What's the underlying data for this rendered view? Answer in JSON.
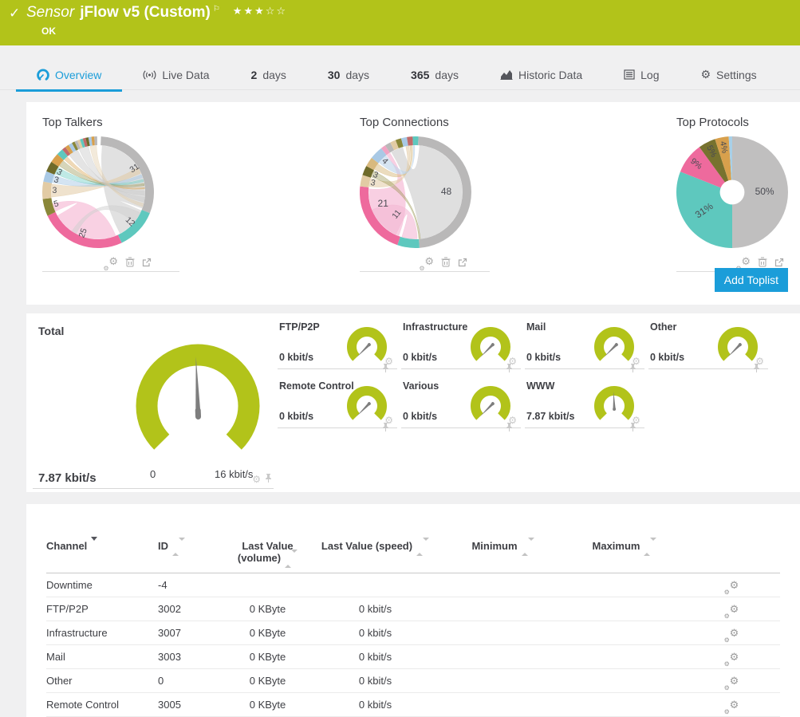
{
  "header": {
    "check": "✓",
    "kind": "Sensor",
    "name": "jFlow v5 (Custom)",
    "flag": "⚐",
    "stars": "★★★☆☆",
    "status": "OK"
  },
  "tabs": [
    {
      "id": "overview",
      "icon": "gauge-icon",
      "label": "Overview",
      "active": true
    },
    {
      "id": "live-data",
      "icon": "broadcast-icon",
      "label": "Live Data"
    },
    {
      "id": "2-days",
      "num": "2",
      "label": "days"
    },
    {
      "id": "30-days",
      "num": "30",
      "label": "days"
    },
    {
      "id": "365-days",
      "num": "365",
      "label": "days"
    },
    {
      "id": "historic-data",
      "icon": "chart-icon",
      "label": "Historic Data"
    },
    {
      "id": "log",
      "icon": "log-icon",
      "label": "Log"
    },
    {
      "id": "settings",
      "icon": "gear-icon",
      "label": "Settings"
    }
  ],
  "toplists": {
    "add_button": "Add Toplist",
    "items": [
      {
        "title": "Top Talkers"
      },
      {
        "title": "Top Connections"
      },
      {
        "title": "Top Protocols"
      }
    ]
  },
  "chart_data": [
    {
      "type": "chord",
      "title": "Top Talkers",
      "unit": "percent",
      "values": [
        31,
        25,
        12,
        5,
        3,
        3,
        3
      ],
      "segments": [
        {
          "a": [
            3,
            112
          ],
          "c": "#b9b8b8"
        },
        {
          "a": [
            112,
            155
          ],
          "c": "#5ec8be"
        },
        {
          "a": [
            155,
            245
          ],
          "c": "#ee6a9d"
        },
        {
          "a": [
            245,
            263
          ],
          "c": "#8a8738"
        },
        {
          "a": [
            263,
            281
          ],
          "c": "#e2cba4"
        },
        {
          "a": [
            281,
            292
          ],
          "c": "#a9c9e5"
        },
        {
          "a": [
            292,
            303
          ],
          "c": "#6f6b2a"
        },
        {
          "a": [
            303,
            313
          ],
          "c": "#d8a04c"
        },
        {
          "a": [
            313,
            320
          ],
          "c": "#5ec8be"
        },
        {
          "a": [
            320,
            324
          ],
          "c": "#c16a6a"
        },
        {
          "a": [
            324,
            328
          ],
          "c": "#d8a04c"
        },
        {
          "a": [
            328,
            332
          ],
          "c": "#a9c9e5"
        },
        {
          "a": [
            332,
            335
          ],
          "c": "#8a8738"
        },
        {
          "a": [
            335,
            338
          ],
          "c": "#b9b8b8"
        },
        {
          "a": [
            338,
            341
          ],
          "c": "#e2cba4"
        },
        {
          "a": [
            341,
            344
          ],
          "c": "#5ec8be"
        },
        {
          "a": [
            344,
            347
          ],
          "c": "#c16a6a"
        },
        {
          "a": [
            347,
            350
          ],
          "c": "#6f6b2a"
        },
        {
          "a": [
            350,
            353
          ],
          "c": "#a9c9e5"
        },
        {
          "a": [
            353,
            356
          ],
          "c": "#d8a04c"
        },
        {
          "a": [
            356,
            359
          ],
          "c": "#b9b8b8"
        }
      ],
      "ribbons": [
        {
          "s": [
            5,
            110
          ],
          "t": [
            113,
            152
          ],
          "c": "#dcdcdc",
          "o": 0.85
        },
        {
          "s": [
            158,
            240
          ],
          "t": [
            246,
            256
          ],
          "c": "#f8cce0",
          "o": 0.9
        },
        {
          "s": [
            264,
            280
          ],
          "t": [
            58,
            66
          ],
          "c": "#e2cba4",
          "o": 0.55
        },
        {
          "s": [
            282,
            291
          ],
          "t": [
            68,
            72
          ],
          "c": "#a9c9e5",
          "o": 0.5
        },
        {
          "s": [
            293,
            302
          ],
          "t": [
            74,
            77
          ],
          "c": "#5ec8be",
          "o": 0.4
        },
        {
          "s": [
            304,
            312
          ],
          "t": [
            79,
            82
          ],
          "c": "#8a8738",
          "o": 0.35
        },
        {
          "s": [
            314,
            319
          ],
          "t": [
            84,
            86
          ],
          "c": "#d8a04c",
          "o": 0.4
        },
        {
          "s": [
            322,
            334
          ],
          "t": [
            88,
            94
          ],
          "c": "#c9c9c9",
          "o": 0.5
        },
        {
          "s": [
            336,
            348
          ],
          "t": [
            96,
            102
          ],
          "c": "#c9c9c9",
          "o": 0.45
        },
        {
          "s": [
            350,
            358
          ],
          "t": [
            104,
            108
          ],
          "c": "#e2cba4",
          "o": 0.4
        },
        {
          "s": [
            116,
            130
          ],
          "t": [
            208,
            214
          ],
          "c": "#cfcfcf",
          "o": 0.5
        }
      ],
      "labels": [
        {
          "t": "31",
          "ang": 57,
          "rf": 0.78,
          "rot": -33
        },
        {
          "t": "12",
          "ang": 133,
          "rf": 0.78,
          "rot": 43
        },
        {
          "t": "25",
          "ang": 200,
          "rf": 0.78,
          "rot": -70
        },
        {
          "t": "5",
          "ang": 254,
          "rf": 0.78,
          "rot": -16
        },
        {
          "t": "3",
          "ang": 272,
          "rf": 0.78,
          "rot": 2
        },
        {
          "t": "3",
          "ang": 286,
          "rf": 0.78,
          "rot": 16
        },
        {
          "t": "3",
          "ang": 297,
          "rf": 0.78,
          "rot": 27
        }
      ]
    },
    {
      "type": "chord",
      "title": "Top Connections",
      "unit": "percent",
      "values": [
        48,
        21,
        11,
        4,
        3,
        3
      ],
      "segments": [
        {
          "a": [
            0,
            3
          ],
          "c": "#5ec8be"
        },
        {
          "a": [
            3,
            176
          ],
          "c": "#b9b8b8"
        },
        {
          "a": [
            176,
            199
          ],
          "c": "#5ec8be"
        },
        {
          "a": [
            199,
            276
          ],
          "c": "#ee6a9d"
        },
        {
          "a": [
            276,
            288
          ],
          "c": "#e2cba4"
        },
        {
          "a": [
            288,
            298
          ],
          "c": "#6f6b2a"
        },
        {
          "a": [
            298,
            308
          ],
          "c": "#d8b97e"
        },
        {
          "a": [
            308,
            322
          ],
          "c": "#a9c9e5"
        },
        {
          "a": [
            322,
            327
          ],
          "c": "#f0a3c3"
        },
        {
          "a": [
            327,
            333
          ],
          "c": "#b9b8b8"
        },
        {
          "a": [
            333,
            339
          ],
          "c": "#e2cba4"
        },
        {
          "a": [
            339,
            345
          ],
          "c": "#8a8738"
        },
        {
          "a": [
            345,
            351
          ],
          "c": "#a9c9e5"
        },
        {
          "a": [
            351,
            357
          ],
          "c": "#c16a6a"
        },
        {
          "a": [
            357,
            360
          ],
          "c": "#5ec8be"
        }
      ],
      "ribbons": [
        {
          "s": [
            5,
            174
          ],
          "t": [
            329,
            344
          ],
          "c": "#dcdcdc",
          "o": 0.9
        },
        {
          "s": [
            201,
            274
          ],
          "t": [
            322,
            327
          ],
          "c": "#f8cce0",
          "o": 0.95
        },
        {
          "s": [
            205,
            248
          ],
          "t": [
            178,
            197
          ],
          "c": "#f3b7d3",
          "o": 0.6
        },
        {
          "s": [
            277,
            287
          ],
          "t": [
            348,
            352
          ],
          "c": "#e2cba4",
          "o": 0.55
        },
        {
          "s": [
            289,
            297
          ],
          "t": [
            174,
            176
          ],
          "c": "#8a8738",
          "o": 0.35
        },
        {
          "s": [
            299,
            307
          ],
          "t": [
            353,
            356
          ],
          "c": "#d8b97e",
          "o": 0.5
        },
        {
          "s": [
            309,
            321
          ],
          "t": [
            357,
            359
          ],
          "c": "#bcd4ea",
          "o": 0.6
        }
      ],
      "labels": [
        {
          "t": "48",
          "ang": 90,
          "rf": 0.55,
          "rot": 0,
          "fs": 12
        },
        {
          "t": "21",
          "ang": 250,
          "rf": 0.62,
          "rot": 0,
          "fs": 12
        },
        {
          "t": "11",
          "ang": 220,
          "rf": 0.52,
          "rot": -52
        },
        {
          "t": "3",
          "ang": 282,
          "rf": 0.78,
          "rot": 12
        },
        {
          "t": "3",
          "ang": 293,
          "rf": 0.78,
          "rot": 23
        },
        {
          "t": "4",
          "ang": 315,
          "rf": 0.78,
          "rot": 45
        }
      ]
    },
    {
      "type": "donut",
      "title": "Top Protocols",
      "unit": "percent",
      "hole": 0.22,
      "slices": [
        {
          "name": "slice-1",
          "v": 50,
          "c": "#c0bfbf"
        },
        {
          "name": "slice-2",
          "v": 31,
          "c": "#5ec8be"
        },
        {
          "name": "slice-3",
          "v": 9,
          "c": "#ee6a9d"
        },
        {
          "name": "slice-4",
          "v": 5,
          "c": "#77722f"
        },
        {
          "name": "slice-5",
          "v": 4,
          "c": "#d8a04c"
        },
        {
          "name": "slice-6",
          "v": 1,
          "c": "#a8d0e8"
        }
      ],
      "labels": [
        {
          "t": "50%",
          "ang": 90,
          "rf": 0.58,
          "rot": 0,
          "fs": 12
        },
        {
          "t": "31%",
          "ang": 236,
          "rf": 0.6,
          "rot": -34,
          "fs": 12
        },
        {
          "t": "9%",
          "ang": 308,
          "rf": 0.82,
          "rot": 38
        },
        {
          "t": "5%",
          "ang": 333,
          "rf": 0.82,
          "rot": 63
        },
        {
          "t": "4%",
          "ang": 349,
          "rf": 0.82,
          "rot": 79
        }
      ]
    }
  ],
  "gauges": {
    "total": {
      "label": "Total",
      "value": 7.87,
      "max": 16,
      "value_label": "7.87 kbit/s",
      "min_label": "0",
      "max_label": "16 kbit/s"
    },
    "small": [
      {
        "label": "FTP/P2P",
        "value": 0,
        "max": 16,
        "value_label": "0 kbit/s"
      },
      {
        "label": "Infrastructure",
        "value": 0,
        "max": 16,
        "value_label": "0 kbit/s"
      },
      {
        "label": "Mail",
        "value": 0,
        "max": 16,
        "value_label": "0 kbit/s"
      },
      {
        "label": "Other",
        "value": 0,
        "max": 16,
        "value_label": "0 kbit/s"
      },
      {
        "label": "Remote Control",
        "value": 0,
        "max": 16,
        "value_label": "0 kbit/s"
      },
      {
        "label": "Various",
        "value": 0,
        "max": 16,
        "value_label": "0 kbit/s"
      },
      {
        "label": "WWW",
        "value": 7.87,
        "max": 16,
        "value_label": "7.87 kbit/s"
      }
    ]
  },
  "table": {
    "columns": [
      {
        "label": "Channel",
        "sort": "desc",
        "align": "left"
      },
      {
        "label": "ID",
        "sort": "both",
        "align": "left"
      },
      {
        "label": "Last Value (volume)",
        "sort": "both",
        "align": "center"
      },
      {
        "label": "Last Value (speed)",
        "sort": "both",
        "align": "center"
      },
      {
        "label": "Minimum",
        "sort": "both",
        "align": "center"
      },
      {
        "label": "Maximum",
        "sort": "both",
        "align": "center"
      },
      {
        "label": "",
        "sort": "none",
        "align": "center"
      }
    ],
    "rows": [
      {
        "channel": "Downtime",
        "id": "-4",
        "volume": "",
        "speed": "",
        "min": "",
        "max": ""
      },
      {
        "channel": "FTP/P2P",
        "id": "3002",
        "volume": "0 KByte",
        "speed": "0 kbit/s",
        "min": "",
        "max": ""
      },
      {
        "channel": "Infrastructure",
        "id": "3007",
        "volume": "0 KByte",
        "speed": "0 kbit/s",
        "min": "",
        "max": ""
      },
      {
        "channel": "Mail",
        "id": "3003",
        "volume": "0 KByte",
        "speed": "0 kbit/s",
        "min": "",
        "max": ""
      },
      {
        "channel": "Other",
        "id": "0",
        "volume": "0 KByte",
        "speed": "0 kbit/s",
        "min": "",
        "max": ""
      },
      {
        "channel": "Remote Control",
        "id": "3005",
        "volume": "0 KByte",
        "speed": "0 kbit/s",
        "min": "",
        "max": ""
      }
    ]
  },
  "colors": {
    "accent_green": "#b2c31a",
    "accent_blue": "#1b9dd9",
    "gray_slice": "#c0bfbf",
    "teal": "#5ec8be",
    "pink": "#ee6a9d",
    "olive": "#77722f",
    "orange": "#d8a04c",
    "light_blue": "#a8d0e8",
    "needle_gray": "#7e7e7e"
  }
}
